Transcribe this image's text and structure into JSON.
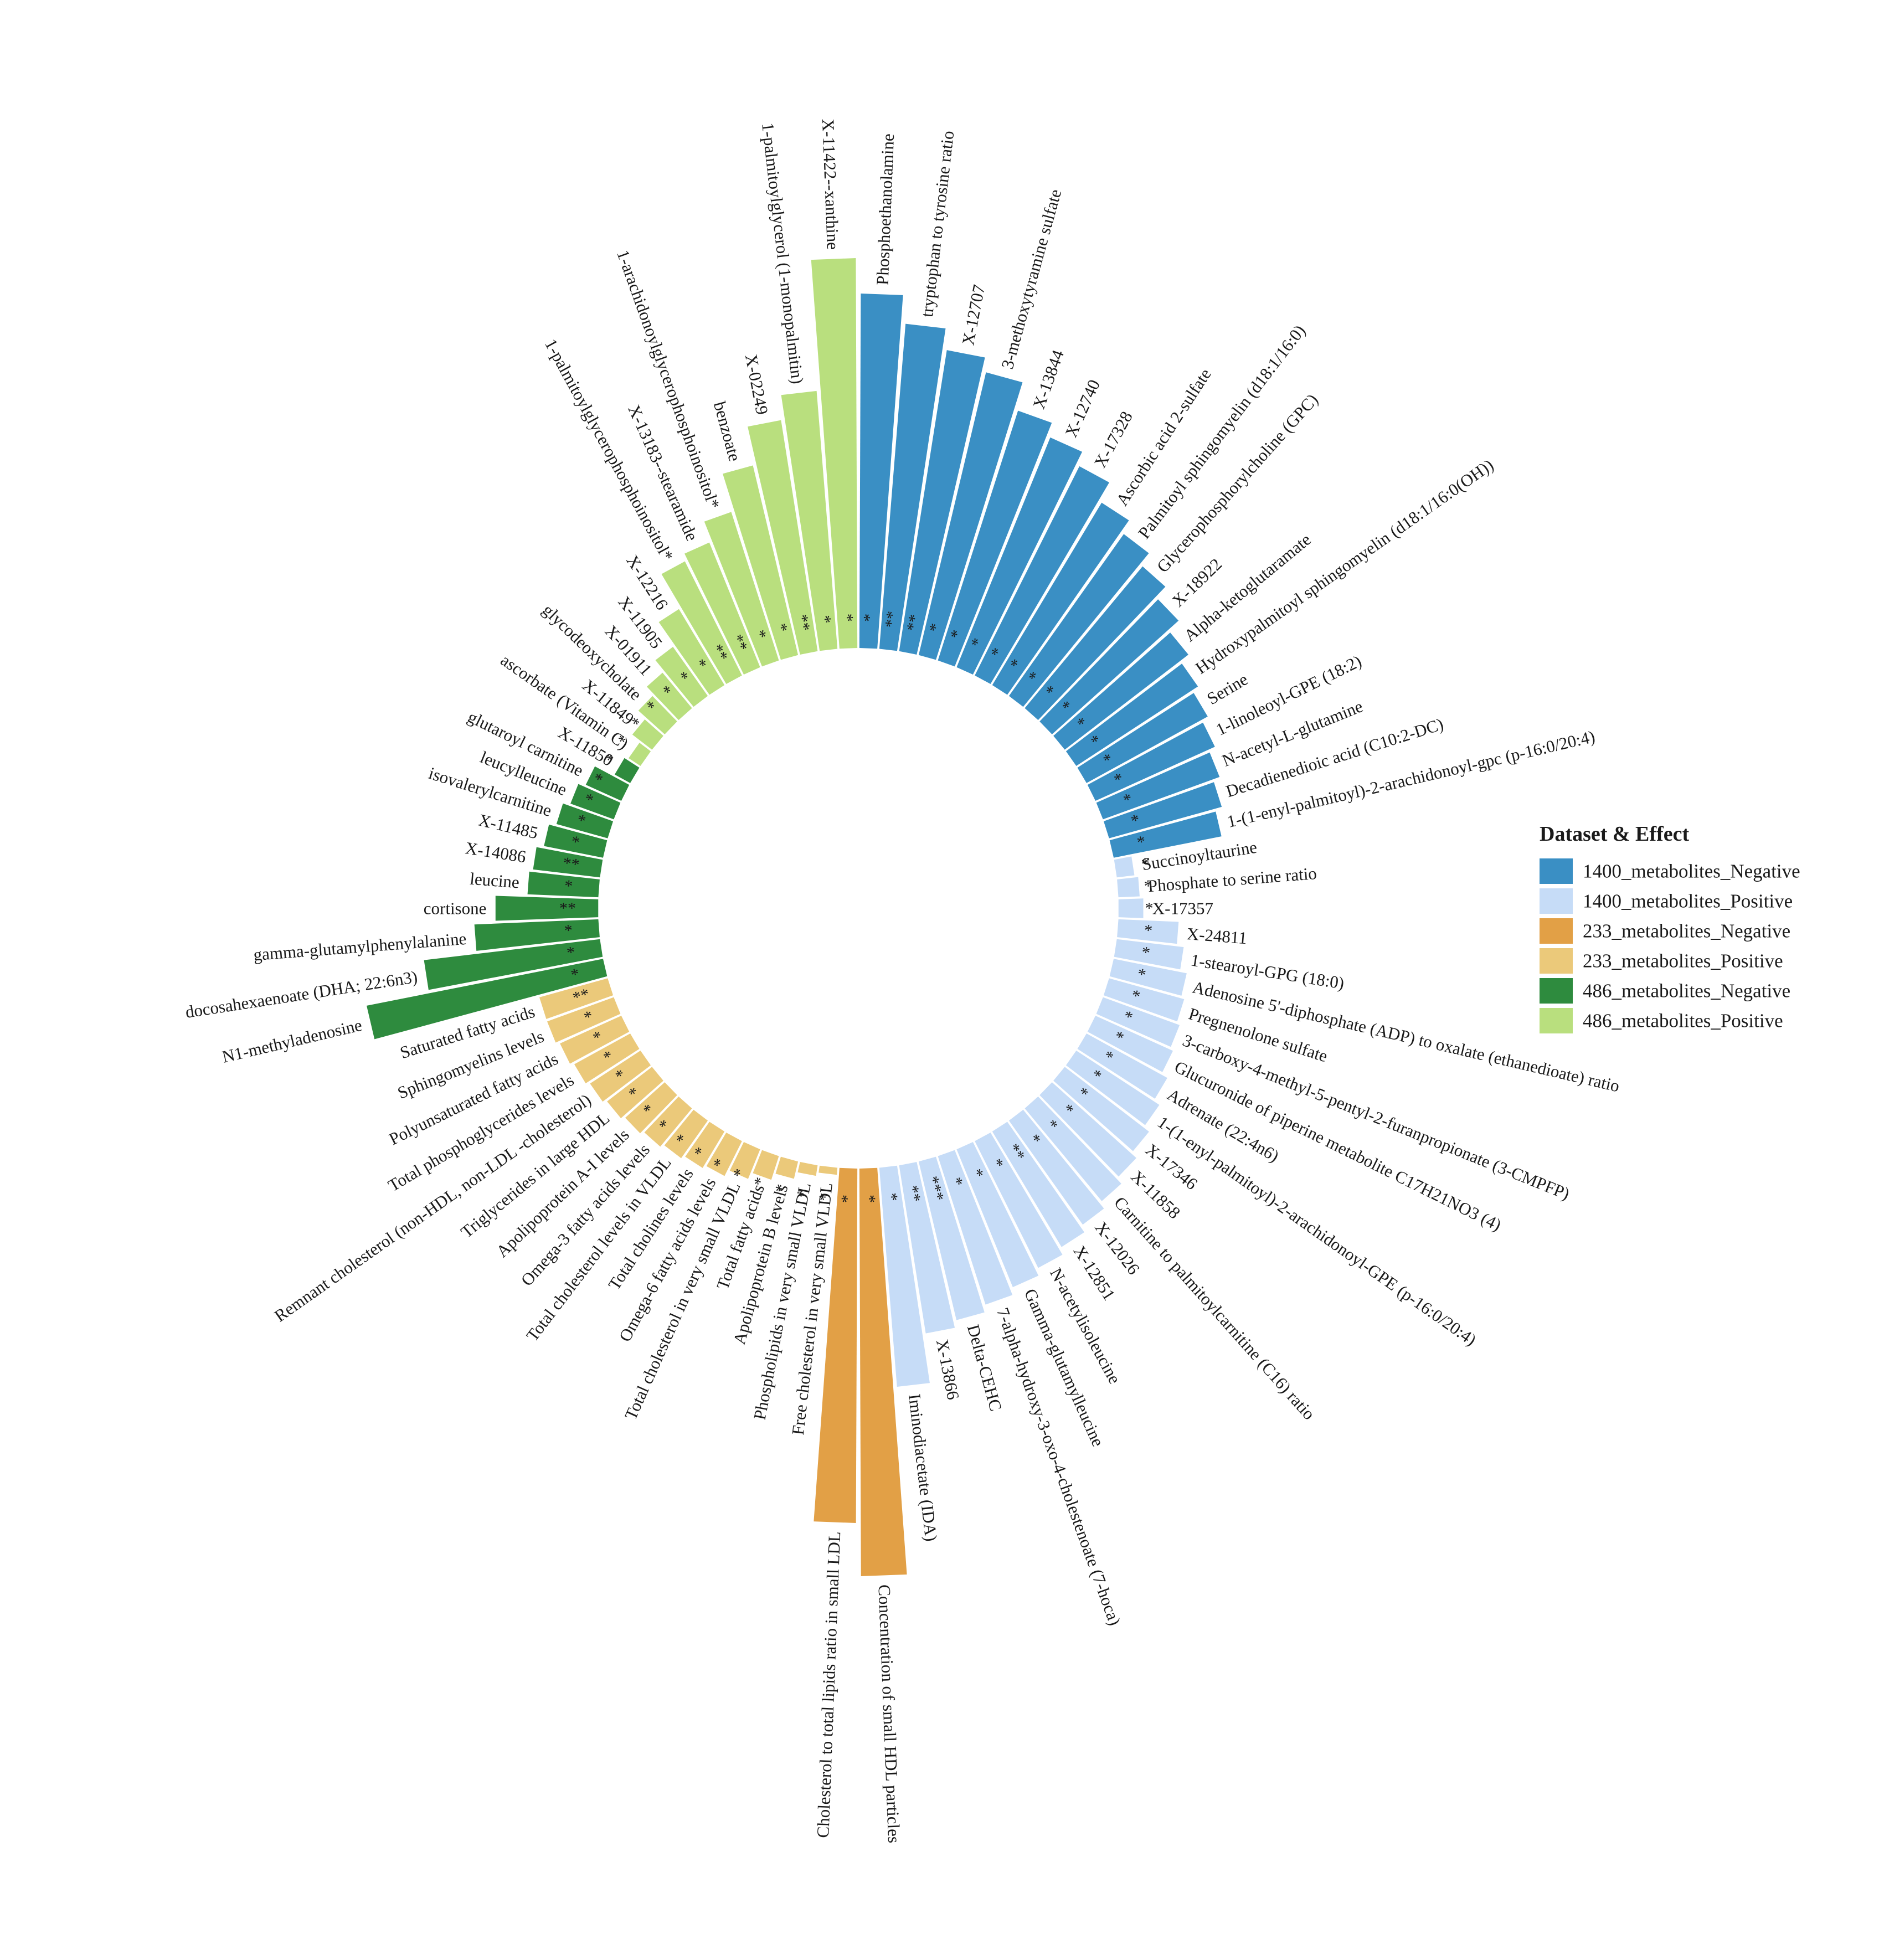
{
  "chart_data": {
    "type": "bar",
    "polar": true,
    "legend": {
      "title": "Dataset & Effect",
      "placement": "right",
      "entries": [
        {
          "name": "1400_metabolites_Negative",
          "color": "#3a8fc4"
        },
        {
          "name": "1400_metabolites_Positive",
          "color": "#c6dcf7"
        },
        {
          "name": "233_metabolites_Negative",
          "color": "#e2a046"
        },
        {
          "name": "233_metabolites_Positive",
          "color": "#ebc97a"
        },
        {
          "name": "486_metabolites_Negative",
          "color": "#2e8b3e"
        },
        {
          "name": "486_metabolites_Positive",
          "color": "#b9df7e"
        }
      ]
    },
    "bars": [
      {
        "label": "Phosphoethanolamine",
        "group": 0,
        "value": 1.0,
        "sig": "*"
      },
      {
        "label": "tryptophan to tyrosine ratio",
        "group": 0,
        "value": 0.92,
        "sig": "**"
      },
      {
        "label": "X-12707",
        "group": 0,
        "value": 0.86,
        "sig": "**"
      },
      {
        "label": "3-methoxytyramine sulfate",
        "group": 0,
        "value": 0.82,
        "sig": "*"
      },
      {
        "label": "X-13844",
        "group": 0,
        "value": 0.74,
        "sig": "*"
      },
      {
        "label": "X-12740",
        "group": 0,
        "value": 0.7,
        "sig": "*"
      },
      {
        "label": "X-17328",
        "group": 0,
        "value": 0.66,
        "sig": "*"
      },
      {
        "label": "Ascorbic acid 2-sulfate",
        "group": 0,
        "value": 0.6,
        "sig": "*"
      },
      {
        "label": "Palmitoyl sphingomyelin (d18:1/16:0)",
        "group": 0,
        "value": 0.56,
        "sig": "*"
      },
      {
        "label": "Glycerophosphorylcholine (GPC)",
        "group": 0,
        "value": 0.52,
        "sig": "*"
      },
      {
        "label": "X-18922",
        "group": 0,
        "value": 0.48,
        "sig": "*"
      },
      {
        "label": "Alpha-ketoglutaramate",
        "group": 0,
        "value": 0.44,
        "sig": "*"
      },
      {
        "label": "Hydroxypalmitoyl sphingomyelin (d18:1/16:0(OH))",
        "group": 0,
        "value": 0.41,
        "sig": "*"
      },
      {
        "label": "Serine",
        "group": 0,
        "value": 0.39,
        "sig": "*"
      },
      {
        "label": "1-linoleoyl-GPE (18:2)",
        "group": 0,
        "value": 0.37,
        "sig": "*"
      },
      {
        "label": "N-acetyl-L-glutamine",
        "group": 0,
        "value": 0.35,
        "sig": "*"
      },
      {
        "label": "Decadienedioic acid (C10:2-DC)",
        "group": 0,
        "value": 0.33,
        "sig": "*"
      },
      {
        "label": "1-(1-enyl-palmitoyl)-2-arachidonoyl-gpc (p-16:0/20:4)",
        "group": 0,
        "value": 0.31,
        "sig": "*"
      },
      {
        "label": "Succinoyltaurine",
        "group": 1,
        "value": 0.05,
        "sig": "*"
      },
      {
        "label": "Phosphate to serine ratio",
        "group": 1,
        "value": 0.06,
        "sig": "*"
      },
      {
        "label": "X-17357",
        "group": 1,
        "value": 0.07,
        "sig": "*"
      },
      {
        "label": "X-24811",
        "group": 1,
        "value": 0.17,
        "sig": "*"
      },
      {
        "label": "1-stearoyl-GPG (18:0)",
        "group": 1,
        "value": 0.19,
        "sig": "*"
      },
      {
        "label": "Adenosine 5'-diphosphate (ADP) to oxalate (ethanedioate) ratio",
        "group": 1,
        "value": 0.21,
        "sig": "*"
      },
      {
        "label": "Pregnenolone sulfate",
        "group": 1,
        "value": 0.22,
        "sig": "*"
      },
      {
        "label": "3-carboxy-4-methyl-5-pentyl-2-furanpropionate (3-CMPFP)",
        "group": 1,
        "value": 0.23,
        "sig": "*"
      },
      {
        "label": "Glucuronide of piperine metabolite C17H21NO3 (4)",
        "group": 1,
        "value": 0.24,
        "sig": "*"
      },
      {
        "label": "Adrenate (22:4n6)",
        "group": 1,
        "value": 0.26,
        "sig": "*"
      },
      {
        "label": "1-(1-enyl-palmitoyl)-2-arachidonoyl-GPE (p-16:0/20:4)",
        "group": 1,
        "value": 0.28,
        "sig": "*"
      },
      {
        "label": "X-17346",
        "group": 1,
        "value": 0.3,
        "sig": "*"
      },
      {
        "label": "X-11858",
        "group": 1,
        "value": 0.32,
        "sig": "*"
      },
      {
        "label": "Carnitine to palmitoylcarnitine (C16) ratio",
        "group": 1,
        "value": 0.34,
        "sig": "*"
      },
      {
        "label": "X-12026",
        "group": 1,
        "value": 0.36,
        "sig": "*"
      },
      {
        "label": "X-12851",
        "group": 1,
        "value": 0.38,
        "sig": "**"
      },
      {
        "label": "N-acetylisoleucine",
        "group": 1,
        "value": 0.4,
        "sig": "*"
      },
      {
        "label": "Gamma-glutamylleucine",
        "group": 1,
        "value": 0.42,
        "sig": "*"
      },
      {
        "label": "7-alpha-hydroxy-3-oxo-4-cholestenoate (7-hoca)",
        "group": 1,
        "value": 0.44,
        "sig": "*"
      },
      {
        "label": "Delta-CEHC",
        "group": 1,
        "value": 0.46,
        "sig": "***"
      },
      {
        "label": "X-13866",
        "group": 1,
        "value": 0.48,
        "sig": "**"
      },
      {
        "label": "Iminodiacetate (IDA)",
        "group": 1,
        "value": 0.62,
        "sig": "*"
      },
      {
        "label": "Concentration of small HDL particles",
        "group": 2,
        "value": 1.15,
        "sig": "*"
      },
      {
        "label": "Cholesterol to total lipids ratio in small LDL",
        "group": 2,
        "value": 1.0,
        "sig": "*"
      },
      {
        "label": "Free cholesterol in very small VLDL",
        "group": 3,
        "value": 0.02,
        "sig": "*"
      },
      {
        "label": "Phospholipids in very small VLDL",
        "group": 3,
        "value": 0.03,
        "sig": "*"
      },
      {
        "label": "Apolipoprotein B levels",
        "group": 3,
        "value": 0.05,
        "sig": "*"
      },
      {
        "label": "Total fatty acids",
        "group": 3,
        "value": 0.07,
        "sig": "*"
      },
      {
        "label": "Total cholesterol in very small VLDL",
        "group": 3,
        "value": 0.09,
        "sig": "*"
      },
      {
        "label": "Omega-6 fatty acids levels",
        "group": 3,
        "value": 0.11,
        "sig": "*"
      },
      {
        "label": "Total cholines levels",
        "group": 3,
        "value": 0.12,
        "sig": "*"
      },
      {
        "label": "Total cholesterol levels in VLDL",
        "group": 3,
        "value": 0.13,
        "sig": "*"
      },
      {
        "label": "Omega-3 fatty acids levels",
        "group": 3,
        "value": 0.14,
        "sig": "*"
      },
      {
        "label": "Apolipoprotein A-I levels",
        "group": 3,
        "value": 0.15,
        "sig": "*"
      },
      {
        "label": "Triglycerides in large HDL",
        "group": 3,
        "value": 0.16,
        "sig": "*"
      },
      {
        "label": "Remnant cholesterol (non-HDL, non-LDL -cholesterol)",
        "group": 3,
        "value": 0.17,
        "sig": "*"
      },
      {
        "label": "Total phosphoglycerides levels",
        "group": 3,
        "value": 0.18,
        "sig": "*"
      },
      {
        "label": "Polyunsaturated fatty acids",
        "group": 3,
        "value": 0.19,
        "sig": "*"
      },
      {
        "label": "Sphingomyelins levels",
        "group": 3,
        "value": 0.2,
        "sig": "*"
      },
      {
        "label": "Saturated fatty acids",
        "group": 3,
        "value": 0.2,
        "sig": "**"
      },
      {
        "label": "N1-methyladenosine",
        "group": 4,
        "value": 0.68,
        "sig": "*"
      },
      {
        "label": "docosahexaenoate (DHA; 22:6n3)",
        "group": 4,
        "value": 0.5,
        "sig": "*"
      },
      {
        "label": "gamma-glutamylphenylalanine",
        "group": 4,
        "value": 0.35,
        "sig": "*"
      },
      {
        "label": "cortisone",
        "group": 4,
        "value": 0.29,
        "sig": "**"
      },
      {
        "label": "leucine",
        "group": 4,
        "value": 0.2,
        "sig": "*"
      },
      {
        "label": "X-14086",
        "group": 4,
        "value": 0.19,
        "sig": "**"
      },
      {
        "label": "X-11485",
        "group": 4,
        "value": 0.17,
        "sig": "*"
      },
      {
        "label": "isovalerylcarnitine",
        "group": 4,
        "value": 0.15,
        "sig": "*"
      },
      {
        "label": "leucylleucine",
        "group": 4,
        "value": 0.13,
        "sig": "*"
      },
      {
        "label": "glutaroyl carnitine",
        "group": 4,
        "value": 0.11,
        "sig": "*"
      },
      {
        "label": "X-11850",
        "group": 4,
        "value": 0.05,
        "sig": "*"
      },
      {
        "label": "ascorbate (Vitamin C)",
        "group": 5,
        "value": 0.04,
        "sig": "*"
      },
      {
        "label": "X-11849",
        "group": 5,
        "value": 0.07,
        "sig": "*"
      },
      {
        "label": "glycodeoxycholate",
        "group": 5,
        "value": 0.1,
        "sig": "*"
      },
      {
        "label": "X-01911",
        "group": 5,
        "value": 0.13,
        "sig": "*"
      },
      {
        "label": "X-11905",
        "group": 5,
        "value": 0.17,
        "sig": "*"
      },
      {
        "label": "X-12216",
        "group": 5,
        "value": 0.25,
        "sig": "*"
      },
      {
        "label": "1-palmitoylglycerophosphoinositol*",
        "group": 5,
        "value": 0.36,
        "sig": "**"
      },
      {
        "label": "X-13183--stearamide",
        "group": 5,
        "value": 0.38,
        "sig": "**"
      },
      {
        "label": "1-arachidonoylglycerophosphoinositol*",
        "group": 5,
        "value": 0.44,
        "sig": "*"
      },
      {
        "label": "benzoate",
        "group": 5,
        "value": 0.55,
        "sig": "*"
      },
      {
        "label": "X-02249",
        "group": 5,
        "value": 0.66,
        "sig": "**"
      },
      {
        "label": "1-palmitoylglycerol (1-monopalmitin)",
        "group": 5,
        "value": 0.73,
        "sig": "*"
      },
      {
        "label": "X-11422--xanthine",
        "group": 5,
        "value": 1.1,
        "sig": "*"
      }
    ]
  }
}
